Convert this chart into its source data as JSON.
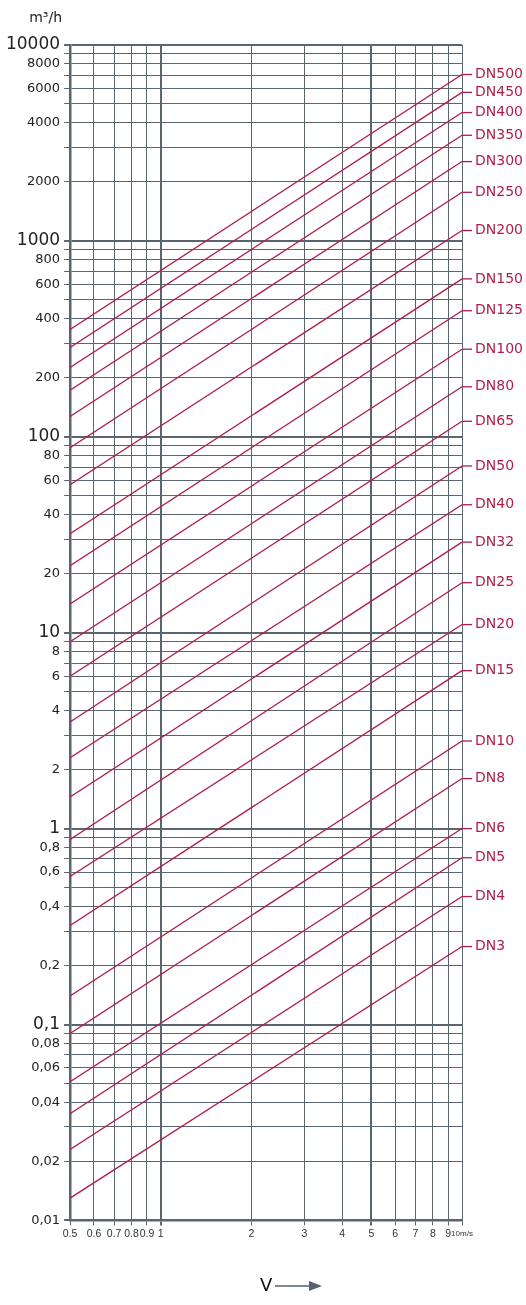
{
  "chart_data": {
    "type": "line",
    "xlabel": "V",
    "ylabel": "m³/h",
    "log": "xy",
    "grid": true,
    "legend": "right",
    "marker": "none",
    "line_style": "solid",
    "x": [
      0.5,
      10
    ],
    "xlim": [
      0.5,
      10
    ],
    "xticks": [
      0.5,
      0.6,
      0.7,
      0.8,
      0.9,
      1,
      2,
      3,
      4,
      5,
      6,
      7,
      8,
      9,
      {
        "value": 10,
        "label": "10m/s"
      }
    ],
    "ylim": [
      0.01,
      10000
    ],
    "yticks": [
      {
        "value": 0.01,
        "label": "0,01"
      },
      {
        "value": 0.02,
        "label": "0,02"
      },
      {
        "value": 0.03,
        "label": null
      },
      {
        "value": 0.04,
        "label": "0,04"
      },
      {
        "value": 0.05,
        "label": null
      },
      {
        "value": 0.06,
        "label": "0,06"
      },
      {
        "value": 0.07,
        "label": null
      },
      {
        "value": 0.08,
        "label": "0,08"
      },
      {
        "value": 0.09,
        "label": null
      },
      {
        "value": 0.1,
        "label": "0,1"
      },
      {
        "value": 0.2,
        "label": "0,2"
      },
      {
        "value": 0.3,
        "label": null
      },
      {
        "value": 0.4,
        "label": "0,4"
      },
      {
        "value": 0.5,
        "label": null
      },
      {
        "value": 0.6,
        "label": "0,6"
      },
      {
        "value": 0.7,
        "label": null
      },
      {
        "value": 0.8,
        "label": "0,8"
      },
      {
        "value": 0.9,
        "label": null
      },
      1,
      2,
      {
        "value": 3,
        "label": null
      },
      4,
      {
        "value": 5,
        "label": null
      },
      6,
      {
        "value": 7,
        "label": null
      },
      8,
      {
        "value": 9,
        "label": null
      },
      10,
      20,
      {
        "value": 30,
        "label": null
      },
      40,
      {
        "value": 50,
        "label": null
      },
      60,
      {
        "value": 70,
        "label": null
      },
      80,
      {
        "value": 90,
        "label": null
      },
      100,
      200,
      {
        "value": 300,
        "label": null
      },
      400,
      {
        "value": 500,
        "label": null
      },
      600,
      {
        "value": 700,
        "label": null
      },
      800,
      {
        "value": 900,
        "label": null
      },
      1000,
      2000,
      {
        "value": 3000,
        "label": null
      },
      4000,
      {
        "value": 5000,
        "label": null
      },
      6000,
      {
        "value": 7000,
        "label": null
      },
      8000,
      {
        "value": 9000,
        "label": null
      },
      10000
    ],
    "series": [
      {
        "name": "DN500",
        "color": "#b01e48",
        "values": [
          353,
          7070
        ]
      },
      {
        "name": "DN450",
        "color": "#b01e48",
        "values": [
          286,
          5730
        ]
      },
      {
        "name": "DN400",
        "color": "#b01e48",
        "values": [
          226,
          4520
        ]
      },
      {
        "name": "DN350",
        "color": "#b01e48",
        "values": [
          173,
          3460
        ]
      },
      {
        "name": "DN300",
        "color": "#b01e48",
        "values": [
          127,
          2540
        ]
      },
      {
        "name": "DN250",
        "color": "#b01e48",
        "values": [
          88,
          1770
        ]
      },
      {
        "name": "DN200",
        "color": "#b01e48",
        "values": [
          57,
          1130
        ]
      },
      {
        "name": "DN150",
        "color": "#b01e48",
        "values": [
          32,
          640
        ]
      },
      {
        "name": "DN125",
        "color": "#b01e48",
        "values": [
          22,
          440
        ]
      },
      {
        "name": "DN100",
        "color": "#b01e48",
        "values": [
          14,
          280
        ]
      },
      {
        "name": "DN80",
        "color": "#b01e48",
        "values": [
          9,
          180
        ]
      },
      {
        "name": "DN65",
        "color": "#b01e48",
        "values": [
          6,
          120
        ]
      },
      {
        "name": "DN50",
        "color": "#b01e48",
        "values": [
          3.5,
          71
        ]
      },
      {
        "name": "DN40",
        "color": "#b01e48",
        "values": [
          2.3,
          45
        ]
      },
      {
        "name": "DN32",
        "color": "#b01e48",
        "values": [
          1.45,
          29
        ]
      },
      {
        "name": "DN25",
        "color": "#b01e48",
        "values": [
          0.88,
          18
        ]
      },
      {
        "name": "DN20",
        "color": "#b01e48",
        "values": [
          0.57,
          11
        ]
      },
      {
        "name": "DN15",
        "color": "#b01e48",
        "values": [
          0.32,
          6.4
        ]
      },
      {
        "name": "DN10",
        "color": "#b01e48",
        "values": [
          0.14,
          2.8
        ]
      },
      {
        "name": "DN8",
        "color": "#b01e48",
        "values": [
          0.09,
          1.8
        ]
      },
      {
        "name": "DN6",
        "color": "#b01e48",
        "values": [
          0.051,
          1.0
        ]
      },
      {
        "name": "DN5",
        "color": "#b01e48",
        "values": [
          0.035,
          0.71
        ]
      },
      {
        "name": "DN4",
        "color": "#b01e48",
        "values": [
          0.023,
          0.45
        ]
      },
      {
        "name": "DN3",
        "color": "#b01e48",
        "values": [
          0.013,
          0.25
        ]
      }
    ]
  }
}
